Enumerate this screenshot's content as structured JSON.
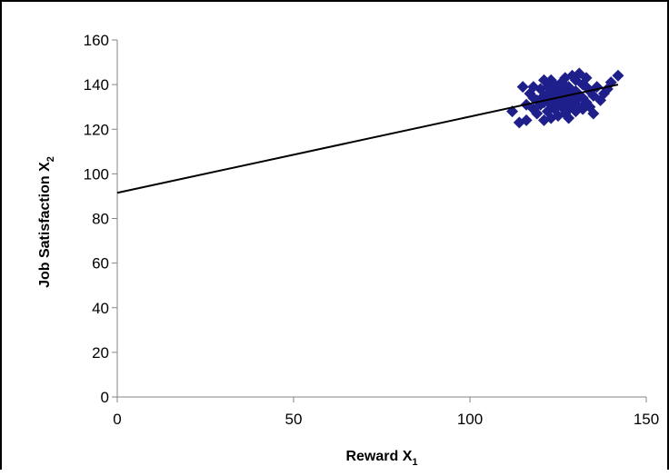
{
  "chart_data": {
    "type": "scatter",
    "title": "",
    "xlabel": "Reward X",
    "xlabel_subscript": "1",
    "ylabel": "Job Satisfaction X",
    "ylabel_subscript": "2",
    "xlim": [
      0,
      150
    ],
    "ylim": [
      0,
      160
    ],
    "x_ticks": [
      0,
      50,
      100,
      150
    ],
    "y_ticks": [
      0,
      20,
      40,
      60,
      80,
      100,
      120,
      140,
      160
    ],
    "grid": false,
    "legend": "none",
    "marker": "diamond",
    "marker_color": "#1f1f8c",
    "line_color": "#000000",
    "series": [
      {
        "x": [
          112,
          114,
          115,
          116,
          116,
          117,
          118,
          118,
          119,
          119,
          120,
          120,
          121,
          121,
          121,
          122,
          122,
          122,
          123,
          123,
          123,
          123,
          124,
          124,
          124,
          125,
          125,
          125,
          126,
          126,
          126,
          127,
          127,
          127,
          127,
          128,
          128,
          128,
          128,
          129,
          129,
          129,
          130,
          130,
          130,
          130,
          131,
          131,
          131,
          132,
          132,
          132,
          133,
          133,
          134,
          134,
          135,
          135,
          136,
          137,
          138,
          139,
          140,
          142,
          118,
          121,
          124,
          127,
          130,
          133
        ],
        "y": [
          128,
          123,
          139,
          131,
          124,
          136,
          129,
          139,
          133,
          127,
          138,
          131,
          124,
          142,
          135,
          128,
          139,
          133,
          125,
          131,
          137,
          142,
          129,
          135,
          140,
          126,
          133,
          138,
          130,
          136,
          141,
          127,
          132,
          138,
          143,
          129,
          134,
          139,
          125,
          131,
          136,
          144,
          128,
          133,
          137,
          142,
          130,
          135,
          145,
          129,
          134,
          140,
          132,
          143,
          130,
          137,
          127,
          135,
          139,
          133,
          136,
          138,
          141,
          144,
          134,
          132,
          131,
          135,
          137,
          139
        ]
      }
    ],
    "trendline": {
      "x": [
        0,
        142
      ],
      "y": [
        91.5,
        140
      ]
    }
  }
}
